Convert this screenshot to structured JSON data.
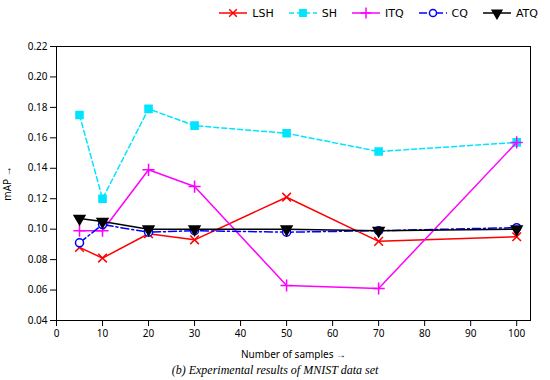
{
  "chart_data": {
    "type": "line",
    "caption": "(b) Experimental results of MNIST data set",
    "x_label": "Number of samples",
    "y_label": "mAP",
    "x": [
      5,
      10,
      20,
      30,
      50,
      70,
      100
    ],
    "series": [
      {
        "name": "LSH",
        "color": "#ff0000",
        "marker": "x",
        "line_style": "solid",
        "values": [
          0.088,
          0.081,
          0.097,
          0.093,
          0.121,
          0.092,
          0.095
        ]
      },
      {
        "name": "SH",
        "color": "#00e5ff",
        "marker": "square",
        "line_style": "dashed",
        "values": [
          0.175,
          0.12,
          0.179,
          0.168,
          0.163,
          0.151,
          0.157
        ]
      },
      {
        "name": "ITQ",
        "color": "#ff00ff",
        "marker": "plus",
        "line_style": "solid",
        "values": [
          0.099,
          0.099,
          0.139,
          0.128,
          0.063,
          0.061,
          0.157
        ]
      },
      {
        "name": "CQ",
        "color": "#0000ff",
        "marker": "circle",
        "line_style": "dashdot",
        "values": [
          0.091,
          0.103,
          0.098,
          0.099,
          0.098,
          0.099,
          0.101
        ]
      },
      {
        "name": "ATQ",
        "color": "#000000",
        "marker": "triangle-down",
        "line_style": "solid",
        "values": [
          0.107,
          0.105,
          0.1,
          0.1,
          0.1,
          0.099,
          0.1
        ]
      }
    ],
    "xlim": [
      0,
      103
    ],
    "xticks": [
      0,
      10,
      20,
      30,
      40,
      50,
      60,
      70,
      80,
      90,
      100
    ],
    "ylim": [
      0.04,
      0.22
    ],
    "yticks": [
      0.04,
      0.06,
      0.08,
      {
        "value": 0.1,
        "label": "0.10"
      },
      0.12,
      0.14,
      0.16,
      0.18,
      {
        "value": 0.2,
        "label": "0.20"
      },
      0.22
    ],
    "legend": "upper right",
    "grid": false
  }
}
